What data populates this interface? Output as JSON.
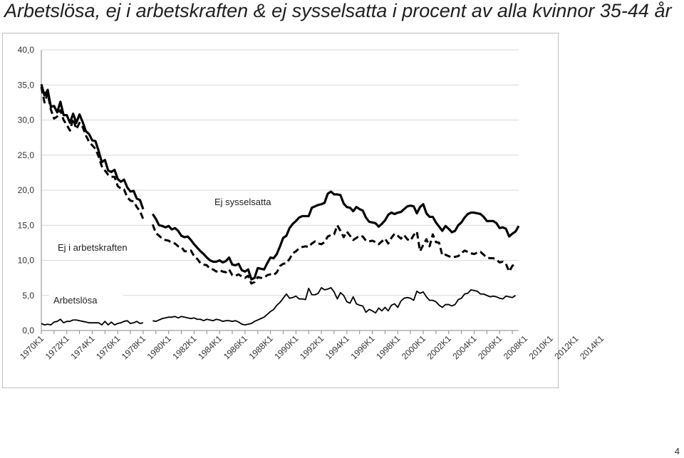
{
  "title": "Arbetslösa, ej i arbetskraften & ej sysselsatta i procent av alla kvinnor 35-44 år",
  "page_number": "4",
  "chart_data": {
    "type": "line",
    "title": "Arbetslösa, ej i arbetskraften & ej sysselsatta i procent av alla kvinnor 35-44 år",
    "xlabel": "",
    "ylabel": "",
    "ylim": [
      0,
      40
    ],
    "y_ticks": [
      "0,0",
      "5,0",
      "10,0",
      "15,0",
      "20,0",
      "25,0",
      "30,0",
      "35,0",
      "40,0"
    ],
    "x_start": {
      "year": 1970,
      "quarter": 1
    },
    "x_ticks": [
      "1970K1",
      "1972K1",
      "1974K1",
      "1976K1",
      "1978K1",
      "1980K1",
      "1982K1",
      "1984K1",
      "1986K1",
      "1988K1",
      "1990K1",
      "1992K1",
      "1994K1",
      "1996K1",
      "1998K1",
      "2000K1",
      "2002K1",
      "2004K1",
      "2006K1",
      "2008K1",
      "2010K1",
      "2012K1",
      "2014K1"
    ],
    "grid": "horizontal",
    "legend": "inline labels",
    "series": [
      {
        "name": "Ej sysselsatta",
        "style": "thick-solid",
        "color": "#000000",
        "values": [
          35.1,
          33.5,
          34.3,
          31.9,
          32.0,
          31.1,
          32.6,
          30.7,
          30.7,
          29.6,
          30.9,
          29.6,
          30.8,
          29.7,
          28.4,
          28.0,
          27.1,
          27.0,
          25.6,
          24.0,
          24.3,
          22.8,
          22.6,
          22.9,
          21.6,
          21.2,
          21.5,
          20.4,
          19.8,
          19.9,
          18.8,
          18.6,
          17.3,
          null,
          null,
          16.6,
          15.9,
          15.0,
          14.9,
          14.7,
          14.9,
          14.4,
          14.6,
          14.2,
          13.5,
          13.3,
          13.4,
          12.9,
          12.3,
          11.8,
          11.3,
          10.9,
          10.4,
          10.0,
          9.8,
          9.8,
          10.0,
          9.7,
          9.9,
          10.4,
          9.4,
          9.3,
          9.5,
          8.6,
          8.4,
          8.7,
          7.3,
          7.5,
          8.9,
          8.8,
          8.7,
          9.6,
          10.4,
          10.3,
          10.9,
          12.0,
          13.2,
          13.5,
          14.6,
          15.2,
          15.6,
          16.1,
          16.3,
          16.3,
          16.3,
          17.5,
          17.7,
          17.9,
          18.0,
          18.2,
          19.5,
          19.8,
          19.4,
          19.4,
          19.3,
          18.1,
          17.6,
          17.5,
          17.0,
          17.6,
          17.3,
          17.1,
          16.1,
          15.5,
          15.4,
          15.3,
          14.8,
          15.2,
          15.7,
          16.5,
          16.8,
          16.6,
          16.8,
          16.9,
          17.3,
          17.7,
          17.8,
          17.7,
          16.7,
          17.6,
          18.0,
          16.7,
          16.2,
          16.2,
          15.4,
          14.8,
          14.2,
          14.9,
          14.5,
          14.0,
          14.2,
          15.0,
          15.4,
          16.1,
          16.6,
          16.8,
          16.8,
          16.7,
          16.6,
          16.2,
          15.6,
          15.6,
          15.6,
          15.3,
          14.6,
          14.7,
          14.5,
          13.4,
          13.8,
          14.1,
          14.9
        ]
      },
      {
        "name": "Ej i arbetskraften",
        "style": "thick-dashed",
        "color": "#000000",
        "values": [
          34.7,
          32.5,
          33.8,
          31.5,
          30.2,
          30.5,
          31.4,
          30.0,
          29.3,
          28.5,
          30.2,
          28.7,
          29.6,
          29.0,
          27.8,
          26.9,
          26.4,
          25.9,
          24.8,
          23.4,
          22.8,
          22.2,
          21.9,
          21.9,
          20.6,
          20.2,
          20.1,
          19.0,
          18.5,
          18.4,
          17.6,
          17.0,
          15.9,
          null,
          null,
          15.1,
          13.9,
          13.5,
          13.1,
          12.9,
          12.8,
          12.5,
          12.4,
          12.0,
          11.9,
          11.3,
          11.3,
          11.4,
          10.6,
          10.2,
          9.6,
          9.4,
          9.3,
          8.8,
          8.7,
          8.4,
          8.6,
          8.4,
          8.3,
          8.7,
          7.9,
          7.8,
          8.0,
          7.7,
          7.5,
          7.8,
          6.7,
          6.9,
          7.6,
          7.5,
          7.5,
          7.9,
          8.0,
          7.9,
          8.3,
          9.2,
          9.5,
          9.6,
          10.2,
          11.0,
          11.3,
          11.7,
          11.9,
          12.0,
          11.9,
          12.4,
          12.7,
          12.4,
          12.3,
          12.6,
          13.4,
          13.6,
          13.7,
          15.0,
          14.2,
          13.3,
          14.1,
          13.5,
          12.9,
          13.2,
          13.5,
          13.4,
          12.8,
          12.7,
          12.8,
          12.6,
          12.3,
          12.7,
          13.1,
          12.4,
          13.2,
          13.8,
          13.5,
          13.1,
          13.6,
          13.0,
          12.8,
          13.6,
          14.1,
          11.3,
          12.2,
          13.0,
          12.0,
          13.7,
          12.6,
          12.5,
          10.7,
          10.8,
          10.6,
          10.4,
          10.5,
          10.6,
          11.0,
          11.4,
          11.2,
          11.0,
          10.9,
          11.1,
          11.2,
          10.8,
          10.4,
          10.3,
          10.3,
          10.1,
          9.7,
          9.8,
          9.5,
          8.4,
          9.2,
          9.6
        ]
      },
      {
        "name": "Arbetslösa",
        "style": "thin-solid",
        "color": "#000000",
        "values": [
          1.0,
          0.8,
          0.9,
          0.8,
          1.2,
          1.3,
          1.6,
          1.1,
          1.3,
          1.3,
          1.5,
          1.5,
          1.4,
          1.3,
          1.2,
          1.1,
          1.1,
          1.1,
          1.1,
          0.8,
          1.3,
          0.8,
          1.2,
          0.8,
          1.0,
          1.1,
          1.3,
          1.4,
          1.0,
          1.1,
          1.3,
          1.0,
          1.1,
          null,
          null,
          1.4,
          1.3,
          1.5,
          1.7,
          1.8,
          1.9,
          1.9,
          2.0,
          1.8,
          2.0,
          1.9,
          1.8,
          1.7,
          1.8,
          1.6,
          1.6,
          1.4,
          1.6,
          1.5,
          1.4,
          1.6,
          1.5,
          1.3,
          1.4,
          1.4,
          1.3,
          1.4,
          1.2,
          0.9,
          0.8,
          0.9,
          1.0,
          1.3,
          1.5,
          1.7,
          1.9,
          2.3,
          2.7,
          3.0,
          3.6,
          4.0,
          4.6,
          5.2,
          4.6,
          4.7,
          4.9,
          4.5,
          4.5,
          4.4,
          6.0,
          5.1,
          5.1,
          5.3,
          6.1,
          5.8,
          5.9,
          6.1,
          5.5,
          4.5,
          5.4,
          5.0,
          4.1,
          3.9,
          4.8,
          3.8,
          3.6,
          3.5,
          2.6,
          3.0,
          2.8,
          2.5,
          3.2,
          2.8,
          3.3,
          2.8,
          3.6,
          3.8,
          3.3,
          4.2,
          4.6,
          4.7,
          4.6,
          4.3,
          5.6,
          5.3,
          5.5,
          4.8,
          4.3,
          4.3,
          4.1,
          3.6,
          3.3,
          3.7,
          3.7,
          3.5,
          3.7,
          4.4,
          4.6,
          5.2,
          5.3,
          5.8,
          5.7,
          5.6,
          5.2,
          5.2,
          5.0,
          4.8,
          4.9,
          4.8,
          4.6,
          4.5,
          4.9,
          4.8,
          4.7,
          5.0
        ]
      }
    ],
    "annotations": [
      {
        "text": "Ej sysselsatta",
        "series": "Ej sysselsatta"
      },
      {
        "text": "Ej i arbetskraften",
        "series": "Ej i arbetskraften"
      },
      {
        "text": "Arbetslösa",
        "series": "Arbetslösa"
      }
    ]
  }
}
